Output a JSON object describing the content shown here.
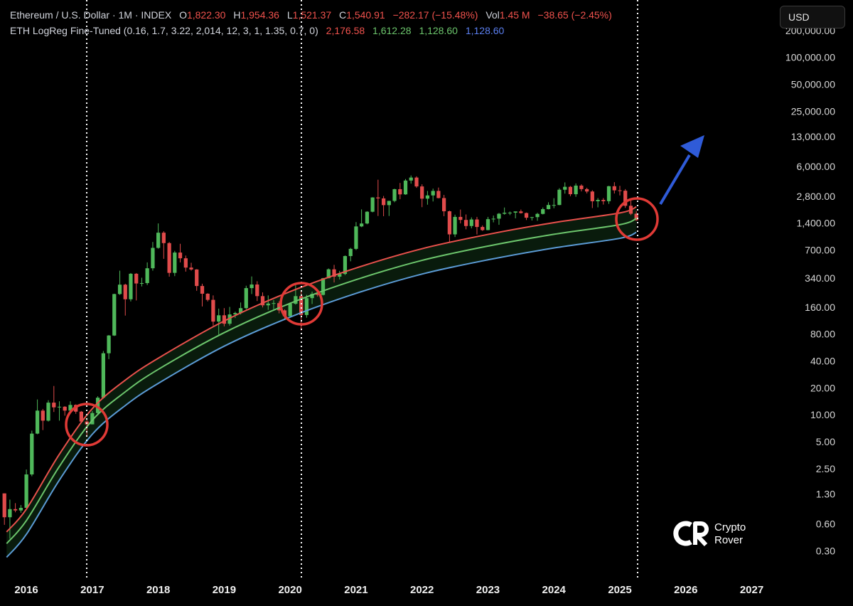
{
  "header": {
    "symbol": "Ethereum / U.S. Dollar · 1M · INDEX",
    "ohlc": [
      {
        "key": "O",
        "value": "1,822.30"
      },
      {
        "key": "H",
        "value": "1,954.36"
      },
      {
        "key": "L",
        "value": "1,521.37"
      },
      {
        "key": "C",
        "value": "1,540.91"
      }
    ],
    "change": "−282.17 (−15.48%)",
    "vol_key": "Vol",
    "vol": "1.45 M",
    "vol_change": "−38.65 (−2.45%)",
    "indicator": "ETH LogReg Fine-Tuned (0.16, 1.7, 3.22, 2,014, 12, 3, 1, 1.35, 0.7, 0)",
    "indicator_values": [
      "2,176.58",
      "1,612.28",
      "1,128.60",
      "1,128.60"
    ],
    "currency": "USD"
  },
  "watermark": [
    "Crypto",
    "Rover"
  ],
  "chart_data": {
    "type": "candlestick",
    "log_scale": true,
    "up_color": "#4fb85a",
    "down_color": "#e04b4b",
    "xlim": [
      2015.6,
      2027.35
    ],
    "xticks": [
      2016,
      2017,
      2018,
      2019,
      2020,
      2021,
      2022,
      2023,
      2024,
      2025,
      2026,
      2027
    ],
    "ylim": [
      0.16,
      450000
    ],
    "yticks": [
      {
        "value": 200000,
        "label": "200,000.00"
      },
      {
        "value": 100000,
        "label": "100,000.00"
      },
      {
        "value": 50000,
        "label": "50,000.00"
      },
      {
        "value": 25000,
        "label": "25,000.00"
      },
      {
        "value": 13000,
        "label": "13,000.00"
      },
      {
        "value": 6000,
        "label": "6,000.00"
      },
      {
        "value": 2800,
        "label": "2,800.00"
      },
      {
        "value": 1400,
        "label": "1,400.00"
      },
      {
        "value": 700,
        "label": "700.00"
      },
      {
        "value": 340,
        "label": "340.00"
      },
      {
        "value": 160,
        "label": "160.00"
      },
      {
        "value": 80,
        "label": "80.00"
      },
      {
        "value": 40,
        "label": "40.00"
      },
      {
        "value": 20,
        "label": "20.00"
      },
      {
        "value": 10,
        "label": "10.00"
      },
      {
        "value": 5,
        "label": "5.00"
      },
      {
        "value": 2.5,
        "label": "2.50"
      },
      {
        "value": 1.3,
        "label": "1.30"
      },
      {
        "value": 0.6,
        "label": "0.60"
      },
      {
        "value": 0.3,
        "label": "0.30"
      }
    ],
    "x": [
      2015.667,
      2015.75,
      2015.833,
      2015.917,
      2016,
      2016.083,
      2016.167,
      2016.25,
      2016.333,
      2016.417,
      2016.5,
      2016.583,
      2016.667,
      2016.75,
      2016.833,
      2016.917,
      2017,
      2017.083,
      2017.167,
      2017.25,
      2017.333,
      2017.417,
      2017.5,
      2017.583,
      2017.667,
      2017.75,
      2017.833,
      2017.917,
      2018,
      2018.083,
      2018.167,
      2018.25,
      2018.333,
      2018.417,
      2018.5,
      2018.583,
      2018.667,
      2018.75,
      2018.833,
      2018.917,
      2019,
      2019.083,
      2019.167,
      2019.25,
      2019.333,
      2019.417,
      2019.5,
      2019.583,
      2019.667,
      2019.75,
      2019.833,
      2019.917,
      2020,
      2020.083,
      2020.167,
      2020.25,
      2020.333,
      2020.417,
      2020.5,
      2020.583,
      2020.667,
      2020.75,
      2020.833,
      2020.917,
      2021,
      2021.083,
      2021.167,
      2021.25,
      2021.333,
      2021.417,
      2021.5,
      2021.583,
      2021.667,
      2021.75,
      2021.833,
      2021.917,
      2022,
      2022.083,
      2022.167,
      2022.25,
      2022.333,
      2022.417,
      2022.5,
      2022.583,
      2022.667,
      2022.75,
      2022.833,
      2022.917,
      2023,
      2023.083,
      2023.167,
      2023.25,
      2023.333,
      2023.417,
      2023.5,
      2023.583,
      2023.667,
      2023.75,
      2023.833,
      2023.917,
      2024,
      2024.083,
      2024.167,
      2024.25,
      2024.333,
      2024.417,
      2024.5,
      2024.583,
      2024.667,
      2024.75,
      2024.833,
      2024.917,
      2025,
      2025.083,
      2025.167,
      2025.25
    ],
    "open": [
      1.35,
      0.73,
      0.9,
      0.87,
      0.93,
      2.2,
      6.3,
      11.4,
      8.8,
      14,
      12.4,
      12.6,
      11.4,
      13.2,
      11.1,
      8.6,
      8,
      10.7,
      15.9,
      50,
      79,
      230,
      293,
      201,
      388,
      302,
      305,
      447,
      756,
      1118,
      855,
      397,
      670,
      578,
      455,
      433,
      283,
      232,
      198,
      113,
      133,
      107,
      136,
      141,
      160,
      268,
      294,
      218,
      172,
      180,
      182,
      151,
      130,
      179,
      218,
      134,
      207,
      231,
      225,
      346,
      435,
      360,
      386,
      612,
      737,
      1314,
      1417,
      1919,
      2773,
      2707,
      2275,
      2536,
      3433,
      3001,
      4288,
      4631,
      3683,
      2688,
      2922,
      3282,
      2730,
      1942,
      1071,
      1680,
      1554,
      1328,
      1572,
      1296,
      1196,
      1585,
      1605,
      1822,
      1870,
      1874,
      1934,
      1856,
      1645,
      1671,
      1815,
      2052,
      2283,
      2283,
      3384,
      3647,
      3015,
      3763,
      3438,
      3232,
      2513,
      2603,
      2518,
      3705,
      3332,
      3300,
      2237,
      1822.3
    ],
    "high": [
      1.35,
      1.15,
      1.05,
      1,
      2.5,
      6.8,
      15.2,
      11.9,
      14.9,
      21.5,
      14.5,
      12.8,
      14.5,
      13.4,
      11.3,
      9,
      11.3,
      16.5,
      53,
      80,
      232,
      420,
      300,
      395,
      395,
      350,
      520,
      880,
      1420,
      1160,
      880,
      700,
      840,
      620,
      515,
      437,
      300,
      235,
      222,
      158,
      160,
      165,
      146,
      185,
      285,
      362,
      320,
      240,
      222,
      197,
      191,
      155,
      185,
      288,
      250,
      225,
      245,
      250,
      349,
      445,
      488,
      418,
      622,
      756,
      1470,
      2040,
      1945,
      2790,
      4380,
      2880,
      2550,
      3470,
      4030,
      4460,
      4890,
      4780,
      3890,
      3280,
      3480,
      3580,
      2960,
      1975,
      1780,
      2030,
      1790,
      1660,
      1680,
      1350,
      1680,
      1740,
      1860,
      2140,
      1930,
      1930,
      2030,
      1880,
      1680,
      1865,
      2140,
      2450,
      2720,
      3520,
      4090,
      3730,
      3980,
      3890,
      3560,
      3340,
      2730,
      2730,
      3740,
      4110,
      3740,
      3440,
      2550,
      1954.36
    ],
    "low": [
      0.6,
      0.42,
      0.83,
      0.82,
      0.93,
      2.1,
      6.2,
      6.9,
      8.6,
      11,
      8.8,
      10,
      11.2,
      10.5,
      8.5,
      5.9,
      8,
      10.4,
      15.5,
      43,
      78,
      225,
      132,
      190,
      195,
      280,
      290,
      420,
      740,
      570,
      360,
      365,
      520,
      410,
      420,
      250,
      167,
      190,
      102,
      81,
      100,
      102,
      124,
      136,
      155,
      230,
      192,
      163,
      153,
      155,
      140,
      118,
      127,
      175,
      90,
      125,
      178,
      215,
      222,
      345,
      310,
      335,
      375,
      535,
      715,
      1290,
      1390,
      1890,
      1720,
      1710,
      1720,
      2450,
      2650,
      2970,
      3960,
      3550,
      2160,
      2300,
      2500,
      2710,
      1710,
      880,
      1000,
      1420,
      1220,
      1250,
      1070,
      1170,
      1190,
      1460,
      1370,
      1780,
      1760,
      1620,
      1830,
      1550,
      1530,
      1520,
      1790,
      2040,
      2100,
      2270,
      3060,
      2860,
      2820,
      3240,
      3080,
      2110,
      2150,
      2310,
      2350,
      3070,
      2920,
      2120,
      1760,
      1521.37
    ],
    "close": [
      0.73,
      0.9,
      0.87,
      0.93,
      2.2,
      6.3,
      11.4,
      8.8,
      14,
      12.4,
      12.6,
      11.4,
      13.2,
      11.1,
      8.6,
      8,
      10.7,
      15.9,
      50,
      79,
      230,
      293,
      201,
      388,
      302,
      305,
      447,
      756,
      1118,
      855,
      397,
      670,
      578,
      455,
      433,
      283,
      232,
      198,
      113,
      133,
      107,
      136,
      141,
      160,
      268,
      294,
      218,
      172,
      180,
      182,
      151,
      130,
      179,
      218,
      134,
      207,
      231,
      225,
      346,
      435,
      360,
      386,
      612,
      737,
      1314,
      1417,
      1919,
      2773,
      2707,
      2275,
      2536,
      3433,
      3001,
      4288,
      4631,
      3683,
      2688,
      2922,
      3282,
      2730,
      1942,
      1071,
      1680,
      1554,
      1328,
      1572,
      1296,
      1196,
      1585,
      1605,
      1822,
      1870,
      1874,
      1934,
      1856,
      1645,
      1671,
      1815,
      2052,
      2283,
      2283,
      3384,
      3647,
      3015,
      3763,
      3438,
      3232,
      2513,
      2603,
      2518,
      3705,
      3332,
      3300,
      2237,
      1822,
      1540.91
    ],
    "band_x": [
      2015.7,
      2016,
      2016.5,
      2017,
      2017.5,
      2018,
      2019,
      2020,
      2021,
      2022,
      2023,
      2024,
      2025,
      2025.25
    ],
    "bands": [
      {
        "color": "#e8514c",
        "values": [
          0.5,
          0.9,
          3.7,
          12,
          25,
          44,
          115,
          245,
          450,
          740,
          1070,
          1450,
          1860,
          2176.58
        ]
      },
      {
        "color": "#6cc56c",
        "values": [
          0.37,
          0.67,
          2.7,
          8.9,
          18.5,
          33,
          85,
          181,
          333,
          548,
          792,
          1073,
          1376,
          1612.28
        ]
      },
      {
        "color": "#5b9bd5",
        "values": [
          0.26,
          0.47,
          1.9,
          6.2,
          13,
          23,
          60,
          127,
          234,
          385,
          556,
          754,
          967,
          1128.6
        ]
      }
    ]
  }
}
